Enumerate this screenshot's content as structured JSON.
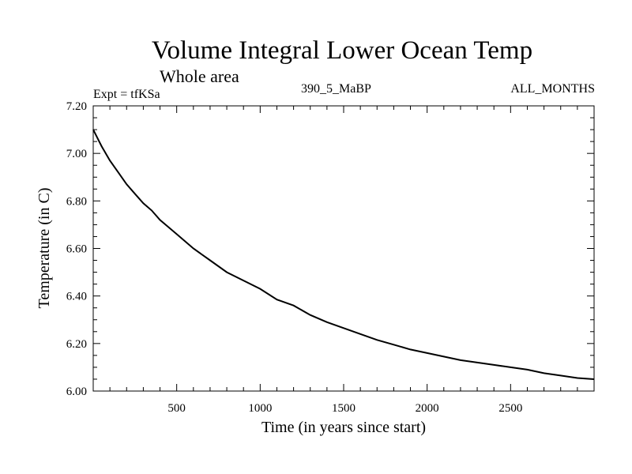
{
  "chart_data": {
    "type": "line",
    "title": "Volume Integral Lower Ocean Temp",
    "subtitle": "Whole area",
    "experiment": "Expt = tfKSa",
    "period": "390_5_MaBP",
    "months": "ALL_MONTHS",
    "xlabel": "Time (in years since start)",
    "ylabel": "Temperature (in C)",
    "xlim": [
      0,
      3000
    ],
    "ylim": [
      6.0,
      7.2
    ],
    "xticks": [
      500,
      1000,
      1500,
      2000,
      2500
    ],
    "xtick_labels": [
      "500",
      "1000",
      "1500",
      "2000",
      "2500"
    ],
    "yticks": [
      6.0,
      6.2,
      6.4,
      6.6,
      6.8,
      7.0,
      7.2
    ],
    "ytick_labels": [
      "6.00",
      "6.20",
      "6.40",
      "6.60",
      "6.80",
      "7.00",
      "7.20"
    ],
    "grid": false,
    "line_color": "#000000",
    "series": [
      {
        "name": "Volume integral lower ocean temperature",
        "x": [
          0,
          50,
          100,
          150,
          200,
          250,
          300,
          350,
          400,
          450,
          500,
          600,
          700,
          800,
          900,
          1000,
          1100,
          1200,
          1300,
          1400,
          1500,
          1600,
          1700,
          1800,
          1900,
          2000,
          2100,
          2200,
          2300,
          2400,
          2500,
          2600,
          2700,
          2800,
          2900,
          3000
        ],
        "y": [
          7.1,
          7.03,
          6.97,
          6.92,
          6.87,
          6.83,
          6.79,
          6.76,
          6.72,
          6.69,
          6.66,
          6.6,
          6.55,
          6.5,
          6.465,
          6.43,
          6.385,
          6.36,
          6.32,
          6.29,
          6.265,
          6.24,
          6.215,
          6.195,
          6.175,
          6.16,
          6.145,
          6.13,
          6.12,
          6.11,
          6.1,
          6.09,
          6.075,
          6.065,
          6.055,
          6.05
        ]
      }
    ]
  }
}
